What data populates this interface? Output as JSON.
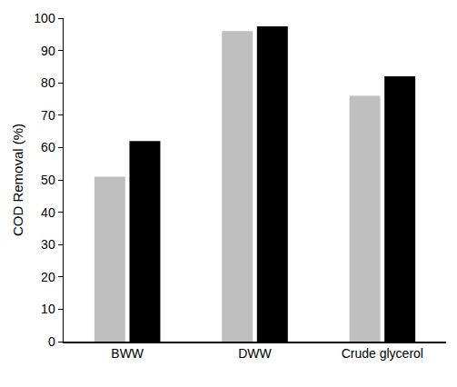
{
  "chart_data": {
    "type": "bar",
    "y_label": "COD Removal (%)",
    "categories": [
      "BWW",
      "DWW",
      "Crude glycerol"
    ],
    "series": [
      {
        "color": "#bfbfbf",
        "values": [
          51,
          96,
          76
        ]
      },
      {
        "color": "#000000",
        "values": [
          62,
          97.5,
          82
        ]
      }
    ],
    "ylim": [
      0,
      100
    ],
    "yticks": [
      0,
      10,
      20,
      30,
      40,
      50,
      60,
      70,
      80,
      90,
      100
    ],
    "grid": false
  }
}
